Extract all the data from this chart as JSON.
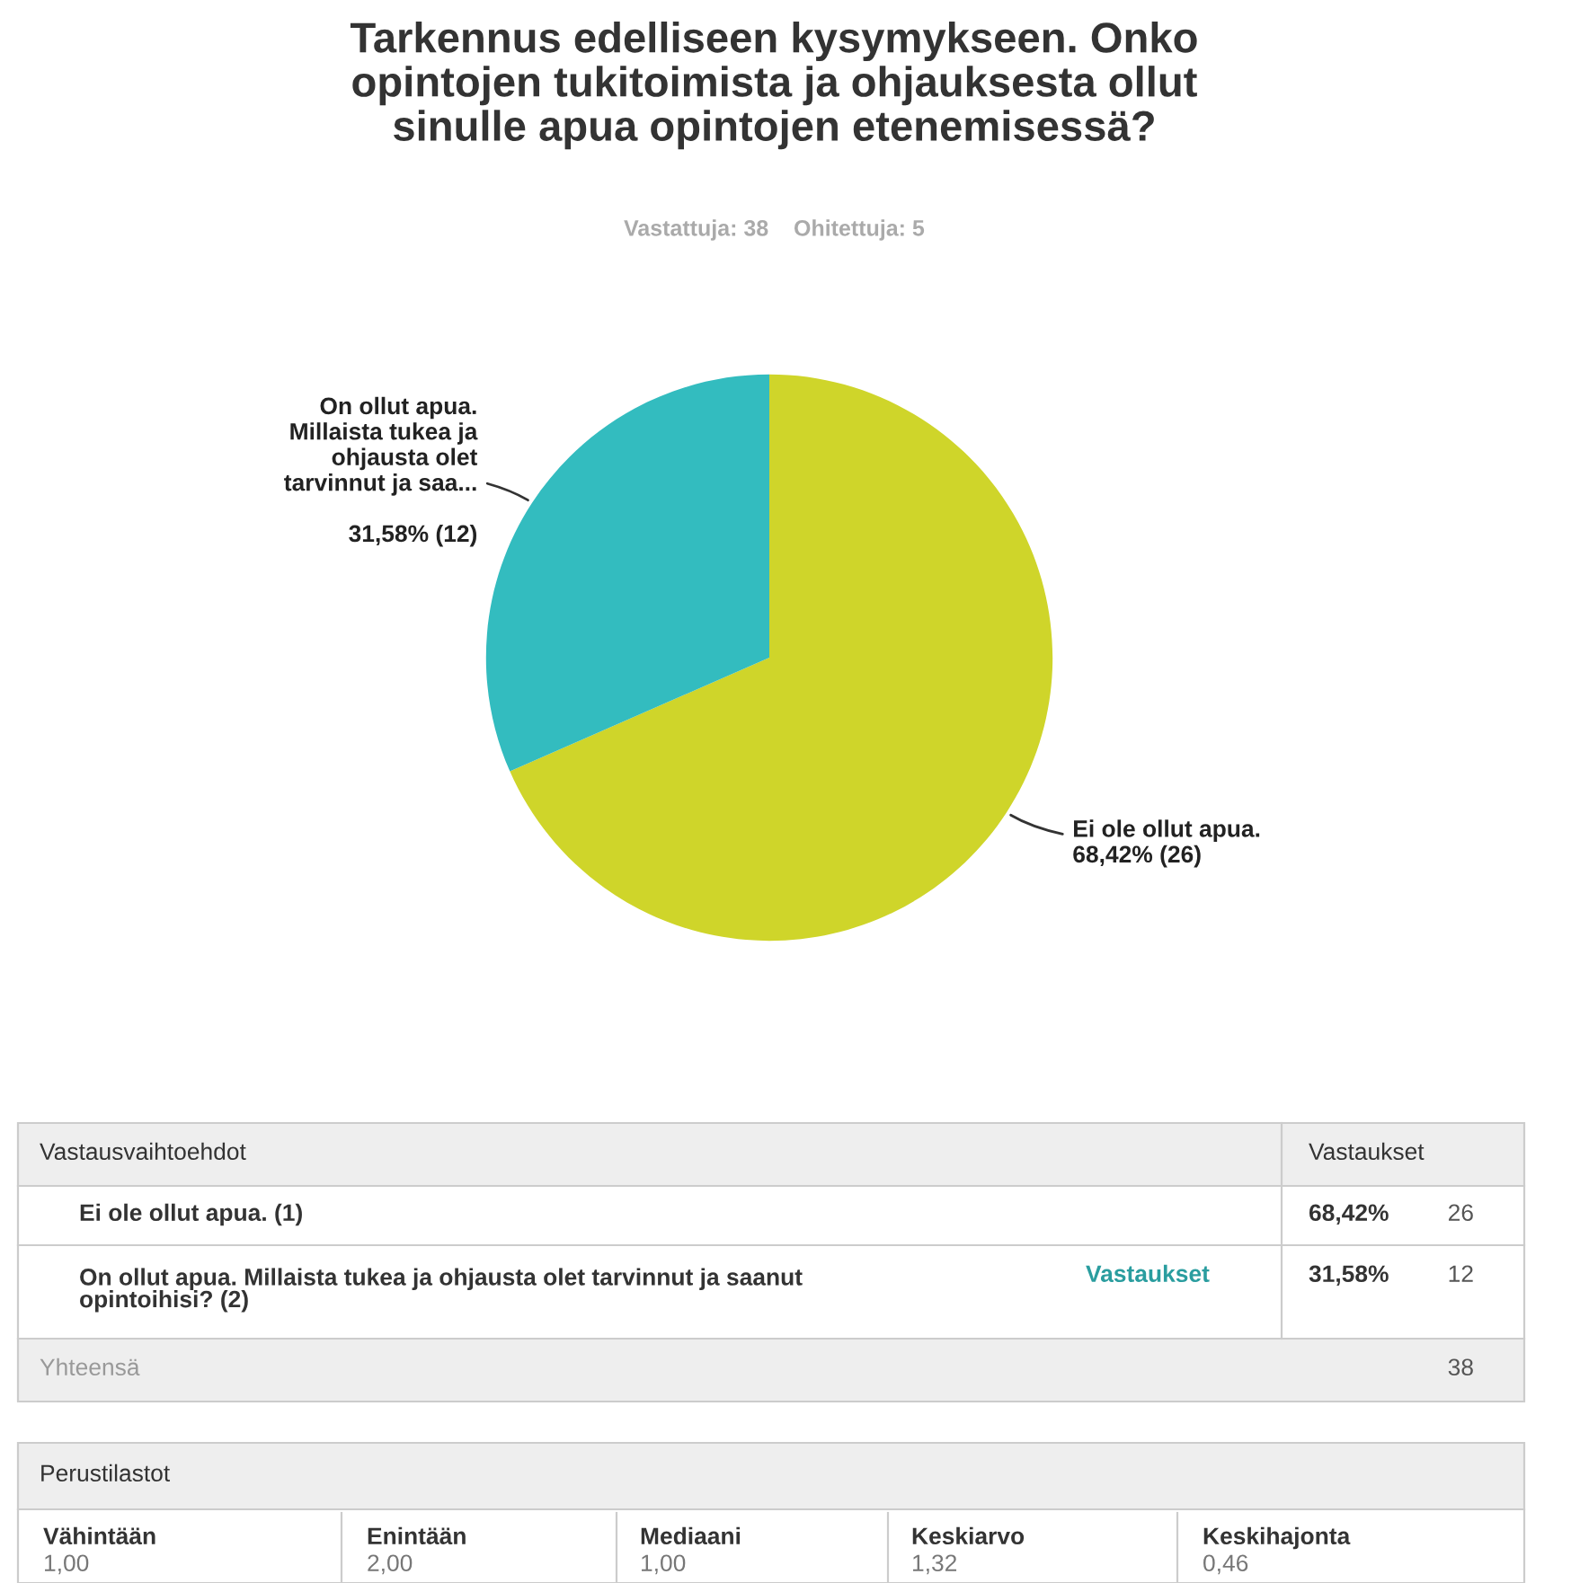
{
  "chart_data": {
    "type": "pie",
    "title": "Tarkennus edelliseen kysymykseen. Onko\nopintojen tukitoimista ja ohjauksesta ollut\nsinulle apua opintojen etenemisessä?",
    "subtitle": "Vastattuja: 38    Ohitettuja: 5",
    "categories": [
      "Ei ole ollut apua.",
      "On ollut apua.\nMillaista tukea ja\nohjausta olet\ntarvinnut ja saa..."
    ],
    "values": [
      26,
      12
    ],
    "colors": [
      "#cfd52a",
      "#33bcbf"
    ],
    "value_labels": [
      "68,42% (26)",
      "31,58% (12)"
    ],
    "legend": false,
    "annotations": [
      "Vastausvaihtoehdot",
      "Vastaukset",
      "Ei ole ollut apua. (1)",
      "68,42%",
      "26",
      "On ollut apua. Millaista tukea ja ohjausta olet tarvinnut ja saanut\nopintoihisi? (2)",
      "Vastaukset",
      "31,58%",
      "12",
      "Yhteensä",
      "38",
      "Perustilastot",
      "Vähintään",
      "1,00",
      "Enintään",
      "2,00",
      "Mediaani",
      "1,00",
      "Keskiarvo",
      "1,32",
      "Keskihajonta",
      "0,46"
    ]
  }
}
